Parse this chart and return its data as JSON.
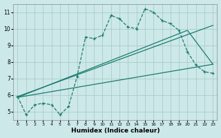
{
  "xlabel": "Humidex (Indice chaleur)",
  "bg_color": "#cce8e8",
  "grid_color": "#aacccc",
  "line_color": "#1a7a6e",
  "xlim": [
    -0.5,
    23.5
  ],
  "ylim": [
    4.5,
    11.5
  ],
  "xticks": [
    0,
    1,
    2,
    3,
    4,
    5,
    6,
    7,
    8,
    9,
    10,
    11,
    12,
    13,
    14,
    15,
    16,
    17,
    18,
    19,
    20,
    21,
    22,
    23
  ],
  "yticks": [
    5,
    6,
    7,
    8,
    9,
    10,
    11
  ],
  "series1_x": [
    0,
    1,
    2,
    3,
    4,
    5,
    6,
    7,
    8,
    9,
    10,
    11,
    12,
    13,
    14,
    15,
    16,
    17,
    18,
    19,
    20,
    21,
    22,
    23
  ],
  "series1_y": [
    5.9,
    4.8,
    5.4,
    5.5,
    5.4,
    4.8,
    5.3,
    7.1,
    9.5,
    9.4,
    9.6,
    10.8,
    10.6,
    10.1,
    10.0,
    11.2,
    11.0,
    10.5,
    10.3,
    9.9,
    8.6,
    7.8,
    7.4,
    7.3
  ],
  "series2_x": [
    0,
    23
  ],
  "series2_y": [
    5.9,
    10.2
  ],
  "series3_x": [
    0,
    23
  ],
  "series3_y": [
    5.85,
    7.85
  ],
  "series4_x": [
    0,
    20,
    23
  ],
  "series4_y": [
    5.85,
    9.9,
    7.85
  ]
}
